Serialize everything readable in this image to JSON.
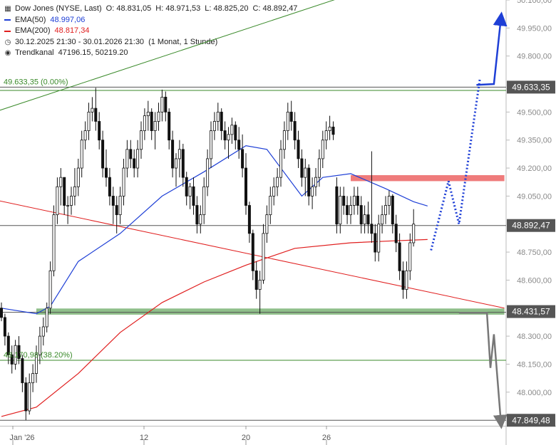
{
  "legend": {
    "main": {
      "title": "Dow Jones (NYSE, Last)",
      "open": "O: 48.831,05",
      "high": "H: 48.971,53",
      "low": "L: 48.825,20",
      "close": "C: 48.892,47"
    },
    "ema50": {
      "label": "EMA(50)",
      "value": "48.997,06",
      "color": "#1e3fd6"
    },
    "ema200": {
      "label": "EMA(200)",
      "value": "48.817,34",
      "color": "#e01e1e"
    },
    "period": {
      "range": "30.12.2025 21:30 - 30.01.2026 21:30",
      "interval": "(1 Monat, 1 Stunde)"
    },
    "channel": {
      "label": "Trendkanal",
      "values": "47196.15, 50219.20"
    }
  },
  "chart_data": {
    "type": "candlestick",
    "instrument": "Dow Jones (NYSE, Last)",
    "ylim": [
      47820,
      50100
    ],
    "y_ticks": [
      "50.100,00",
      "49.950,00",
      "49.800,00",
      "49.500,00",
      "49.350,00",
      "49.200,00",
      "49.050,00",
      "48.750,00",
      "48.600,00",
      "48.300,00",
      "48.150,00",
      "48.000,00"
    ],
    "x_ticks": [
      "Jan '26",
      "12",
      "20",
      "26"
    ],
    "price_labels": [
      {
        "text": "49.633,35",
        "value": 49633.35
      },
      {
        "text": "48.892,47",
        "value": 48892.47
      },
      {
        "text": "48.431,57",
        "value": 48431.57
      },
      {
        "text": "47.849,48",
        "value": 47849.48
      }
    ],
    "level_labels": [
      {
        "text": "49.633,35 (0.00%)",
        "value": 49633.35,
        "color": "#3a8a2a"
      },
      {
        "text": "48.170,98 (38.20%)",
        "value": 48170.98,
        "color": "#3a8a2a"
      }
    ],
    "candles": [
      [
        48450,
        48480,
        48380,
        48400
      ],
      [
        48400,
        48420,
        48250,
        48300
      ],
      [
        48300,
        48320,
        48150,
        48200
      ],
      [
        48200,
        48250,
        48100,
        48150
      ],
      [
        48150,
        48280,
        48120,
        48250
      ],
      [
        48250,
        48300,
        48150,
        48180
      ],
      [
        48180,
        48200,
        48000,
        48050
      ],
      [
        48050,
        48080,
        47850,
        47900
      ],
      [
        47900,
        48100,
        47880,
        48050
      ],
      [
        48050,
        48150,
        48000,
        48100
      ],
      [
        48100,
        48250,
        48050,
        48200
      ],
      [
        48200,
        48350,
        48150,
        48300
      ],
      [
        48300,
        48400,
        48250,
        48350
      ],
      [
        48350,
        48480,
        48320,
        48450
      ],
      [
        48450,
        48700,
        48420,
        48650
      ],
      [
        48650,
        49000,
        48620,
        48950
      ],
      [
        48950,
        49150,
        48900,
        49100
      ],
      [
        49100,
        49200,
        49000,
        49150
      ],
      [
        49150,
        49150,
        48950,
        49000
      ],
      [
        49000,
        49050,
        48900,
        49000
      ],
      [
        49000,
        49100,
        48950,
        49050
      ],
      [
        49050,
        49200,
        49000,
        49100
      ],
      [
        49100,
        49250,
        49050,
        49200
      ],
      [
        49200,
        49400,
        49150,
        49350
      ],
      [
        49350,
        49450,
        49300,
        49400
      ],
      [
        49400,
        49550,
        49350,
        49500
      ],
      [
        49500,
        49580,
        49450,
        49520
      ],
      [
        49520,
        49630,
        49400,
        49450
      ],
      [
        49450,
        49500,
        49300,
        49350
      ],
      [
        49350,
        49400,
        49150,
        49200
      ],
      [
        49200,
        49300,
        49100,
        49150
      ],
      [
        49150,
        49200,
        49000,
        49050
      ],
      [
        49050,
        49100,
        48900,
        49000
      ],
      [
        49000,
        49050,
        48850,
        48950
      ],
      [
        48950,
        49100,
        48900,
        49050
      ],
      [
        49050,
        49250,
        49000,
        49200
      ],
      [
        49200,
        49350,
        49150,
        49300
      ],
      [
        49300,
        49350,
        49200,
        49250
      ],
      [
        49250,
        49300,
        49150,
        49200
      ],
      [
        49200,
        49350,
        49150,
        49300
      ],
      [
        49300,
        49450,
        49250,
        49400
      ],
      [
        49400,
        49520,
        49350,
        49480
      ],
      [
        49480,
        49560,
        49400,
        49500
      ],
      [
        49500,
        49520,
        49350,
        49400
      ],
      [
        49400,
        49500,
        49300,
        49450
      ],
      [
        49450,
        49550,
        49400,
        49500
      ],
      [
        49500,
        49620,
        49450,
        49580
      ],
      [
        49580,
        49610,
        49450,
        49500
      ],
      [
        49500,
        49520,
        49300,
        49350
      ],
      [
        49350,
        49400,
        49150,
        49200
      ],
      [
        49200,
        49280,
        49100,
        49250
      ],
      [
        49250,
        49350,
        49150,
        49300
      ],
      [
        49300,
        49330,
        49100,
        49150
      ],
      [
        49150,
        49180,
        49000,
        49050
      ],
      [
        49050,
        49120,
        48980,
        49100
      ],
      [
        49100,
        49150,
        48950,
        49000
      ],
      [
        49000,
        49050,
        48850,
        48900
      ],
      [
        48900,
        49000,
        48850,
        48950
      ],
      [
        48950,
        49150,
        48900,
        49100
      ],
      [
        49100,
        49300,
        49050,
        49250
      ],
      [
        49250,
        49450,
        49200,
        49400
      ],
      [
        49400,
        49500,
        49350,
        49450
      ],
      [
        49450,
        49550,
        49400,
        49500
      ],
      [
        49500,
        49520,
        49350,
        49400
      ],
      [
        49400,
        49450,
        49300,
        49350
      ],
      [
        49350,
        49420,
        49250,
        49380
      ],
      [
        49380,
        49470,
        49330,
        49430
      ],
      [
        49430,
        49450,
        49300,
        49350
      ],
      [
        49350,
        49420,
        49250,
        49300
      ],
      [
        49300,
        49380,
        49150,
        49200
      ],
      [
        49200,
        49280,
        48950,
        49000
      ],
      [
        49000,
        49020,
        48800,
        48850
      ],
      [
        48850,
        48870,
        48600,
        48650
      ],
      [
        48650,
        48700,
        48500,
        48550
      ],
      [
        48550,
        48650,
        48420,
        48600
      ],
      [
        48600,
        48900,
        48580,
        48850
      ],
      [
        48850,
        49000,
        48800,
        48950
      ],
      [
        48950,
        49100,
        48900,
        49050
      ],
      [
        49050,
        49150,
        49000,
        49100
      ],
      [
        49100,
        49200,
        49050,
        49150
      ],
      [
        49150,
        49350,
        49100,
        49300
      ],
      [
        49300,
        49450,
        49250,
        49400
      ],
      [
        49400,
        49550,
        49350,
        49500
      ],
      [
        49500,
        49560,
        49400,
        49450
      ],
      [
        49450,
        49500,
        49300,
        49350
      ],
      [
        49350,
        49400,
        49200,
        49250
      ],
      [
        49250,
        49300,
        49100,
        49150
      ],
      [
        49150,
        49250,
        49050,
        49200
      ],
      [
        49200,
        49220,
        49000,
        49050
      ],
      [
        49050,
        49150,
        48980,
        49100
      ],
      [
        49100,
        49200,
        49050,
        49150
      ],
      [
        49150,
        49300,
        49100,
        49250
      ],
      [
        49250,
        49400,
        49200,
        49350
      ],
      [
        49350,
        49450,
        49300,
        49400
      ],
      [
        49400,
        49480,
        49350,
        49420
      ],
      [
        49420,
        49450,
        49350,
        49380
      ],
      [
        49100,
        49150,
        48850,
        48900
      ],
      [
        48900,
        49100,
        48850,
        49050
      ],
      [
        49050,
        49100,
        48950,
        49000
      ],
      [
        49000,
        49050,
        48900,
        48950
      ],
      [
        48950,
        49050,
        48900,
        49000
      ],
      [
        49000,
        49100,
        48950,
        49050
      ],
      [
        49050,
        49100,
        48950,
        49000
      ],
      [
        49000,
        49050,
        48850,
        48900
      ],
      [
        48900,
        49000,
        48850,
        48950
      ],
      [
        48950,
        49020,
        48850,
        48900
      ],
      [
        48900,
        49290,
        48800,
        48850
      ],
      [
        48850,
        48900,
        48700,
        48750
      ],
      [
        48750,
        48950,
        48700,
        48900
      ],
      [
        48900,
        49000,
        48850,
        48950
      ],
      [
        48950,
        49050,
        48900,
        49000
      ],
      [
        49000,
        49080,
        48950,
        49050
      ],
      [
        49050,
        49060,
        48850,
        48900
      ],
      [
        48900,
        48950,
        48750,
        48800
      ],
      [
        48800,
        48850,
        48600,
        48650
      ],
      [
        48650,
        48700,
        48500,
        48550
      ],
      [
        48550,
        48700,
        48500,
        48650
      ],
      [
        48650,
        48850,
        48600,
        48800
      ],
      [
        48800,
        48980,
        48780,
        48900
      ]
    ],
    "ema50": [
      [
        0,
        48450
      ],
      [
        10,
        48420
      ],
      [
        14,
        48460
      ],
      [
        22,
        48700
      ],
      [
        34,
        48850
      ],
      [
        46,
        49050
      ],
      [
        58,
        49180
      ],
      [
        70,
        49320
      ],
      [
        76,
        49300
      ],
      [
        86,
        49050
      ],
      [
        92,
        49150
      ],
      [
        100,
        49170
      ],
      [
        110,
        49090
      ],
      [
        118,
        49020
      ],
      [
        122,
        48997.06
      ]
    ],
    "ema200": [
      [
        0,
        47870
      ],
      [
        10,
        47920
      ],
      [
        22,
        48100
      ],
      [
        34,
        48320
      ],
      [
        46,
        48480
      ],
      [
        58,
        48590
      ],
      [
        70,
        48680
      ],
      [
        84,
        48770
      ],
      [
        100,
        48800
      ],
      [
        112,
        48810
      ],
      [
        122,
        48817.34
      ]
    ],
    "trend_channel": [
      {
        "from": [
          -2,
          49030
        ],
        "to": [
          144,
          48450
        ],
        "color": "#e01e1e"
      },
      {
        "from": [
          -2,
          49500
        ],
        "to": [
          100,
          50130
        ],
        "color": "#3a8a2a"
      }
    ],
    "horizontal_lines": [
      {
        "value": 49633.35,
        "color": "#555555"
      },
      {
        "value": 49616,
        "color": "#3a8a2a"
      },
      {
        "value": 48892.47,
        "color": "#555555"
      },
      {
        "value": 48170.98,
        "color": "#3a8a2a"
      },
      {
        "value": 47849.48,
        "color": "#555555"
      }
    ],
    "zones": [
      {
        "from_x": 10,
        "to_x": 144,
        "low": 48415,
        "high": 48448,
        "color": "#8fbf8a"
      },
      {
        "from_x": 100,
        "to_x": 144,
        "low": 49130,
        "high": 49162,
        "color": "#ef7b7b"
      }
    ],
    "scenarios": [
      {
        "color": "#1e3fd6",
        "style": "dotted",
        "points": [
          [
            123,
            48760
          ],
          [
            128,
            49130
          ],
          [
            131,
            48900
          ],
          [
            137,
            49680
          ]
        ]
      },
      {
        "color": "#1e3fd6",
        "style": "solid",
        "points": [
          [
            136,
            49645
          ],
          [
            141,
            49650
          ],
          [
            143,
            50000
          ]
        ],
        "arrow": true
      },
      {
        "color": "#777777",
        "style": "solid",
        "points": [
          [
            131,
            48425
          ],
          [
            139,
            48425
          ],
          [
            140,
            48130
          ],
          [
            141,
            48310
          ],
          [
            143,
            47840
          ]
        ],
        "arrow": true
      }
    ]
  }
}
